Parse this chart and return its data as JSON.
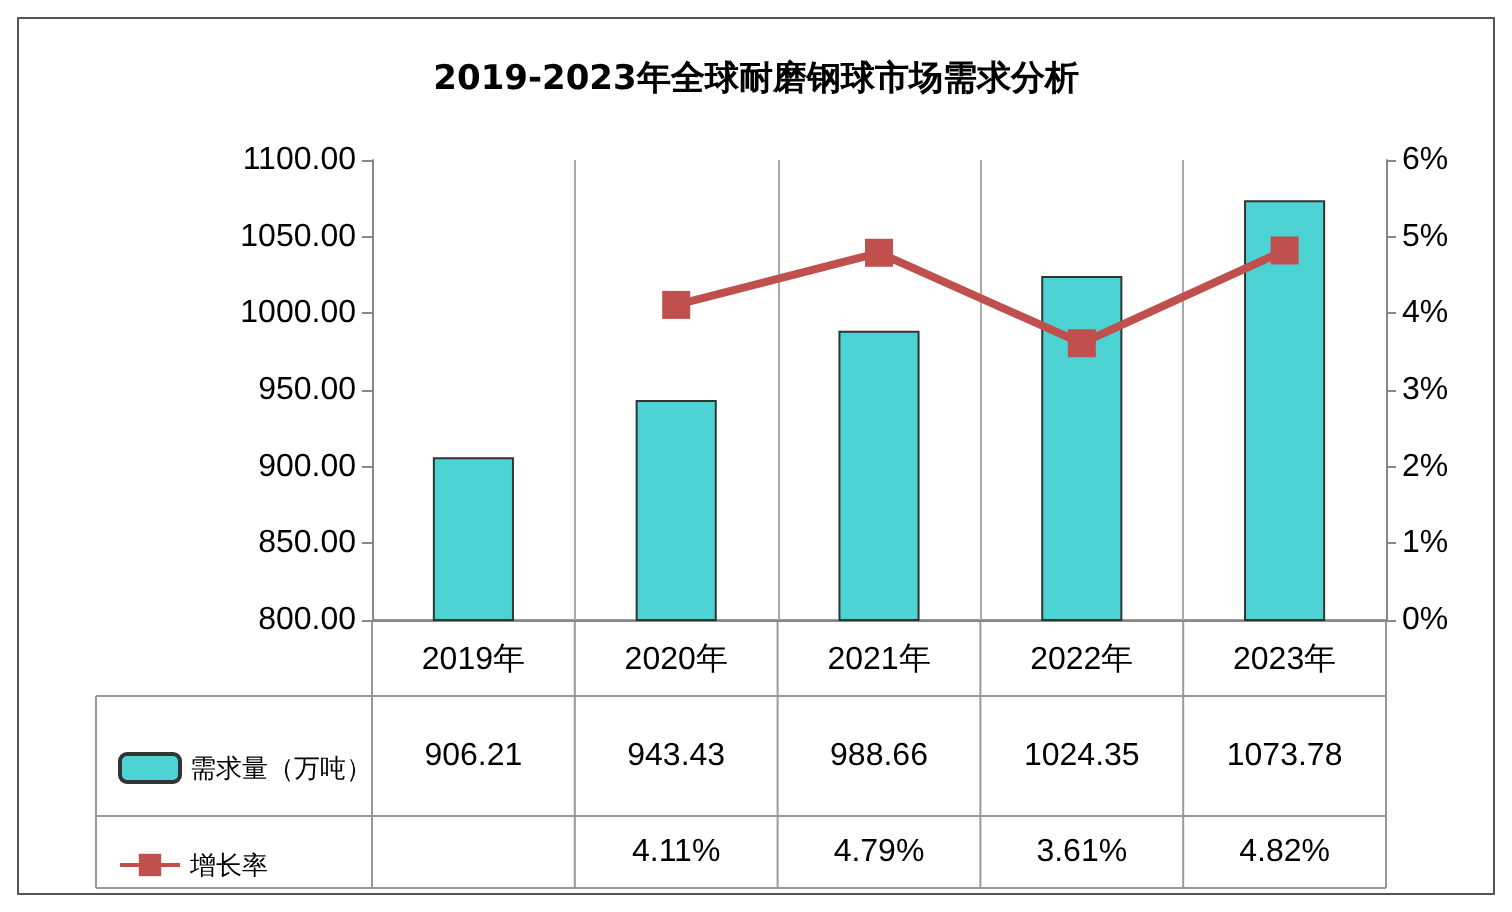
{
  "chart_data": {
    "type": "bar",
    "title": "2019-2023年全球耐磨钢球市场需求分析",
    "categories": [
      "2019年",
      "2020年",
      "2021年",
      "2022年",
      "2023年"
    ],
    "series": [
      {
        "name": "需求量（万吨）",
        "color": "#4dd3d3",
        "values": [
          906.21,
          943.43,
          988.66,
          1024.35,
          1073.78
        ]
      },
      {
        "name": "增长率",
        "type": "line",
        "axis": "y2",
        "color": "#c0504d",
        "marker": "square",
        "values": [
          null,
          4.11,
          4.79,
          3.61,
          4.82
        ],
        "value_labels": [
          null,
          "4.11%",
          "4.79%",
          "3.61%",
          "4.82%"
        ]
      }
    ],
    "data_labels": true,
    "ylim": [
      800,
      1100
    ],
    "yticks": [
      {
        "value": 800,
        "label": "800.00"
      },
      {
        "value": 850,
        "label": "850.00"
      },
      {
        "value": 900,
        "label": "900.00"
      },
      {
        "value": 950,
        "label": "950.00"
      },
      {
        "value": 1000,
        "label": "1000.00"
      },
      {
        "value": 1050,
        "label": "1050.00"
      },
      {
        "value": 1100,
        "label": "1100.00"
      }
    ],
    "y2lim": [
      0,
      6
    ],
    "y2ticks": [
      {
        "value": 0,
        "label": "0%"
      },
      {
        "value": 1,
        "label": "1%"
      },
      {
        "value": 2,
        "label": "2%"
      },
      {
        "value": 3,
        "label": "3%"
      },
      {
        "value": 4,
        "label": "4%"
      },
      {
        "value": 5,
        "label": "5%"
      },
      {
        "value": 6,
        "label": "6%"
      }
    ],
    "grid": "x",
    "legend": "bottom"
  }
}
